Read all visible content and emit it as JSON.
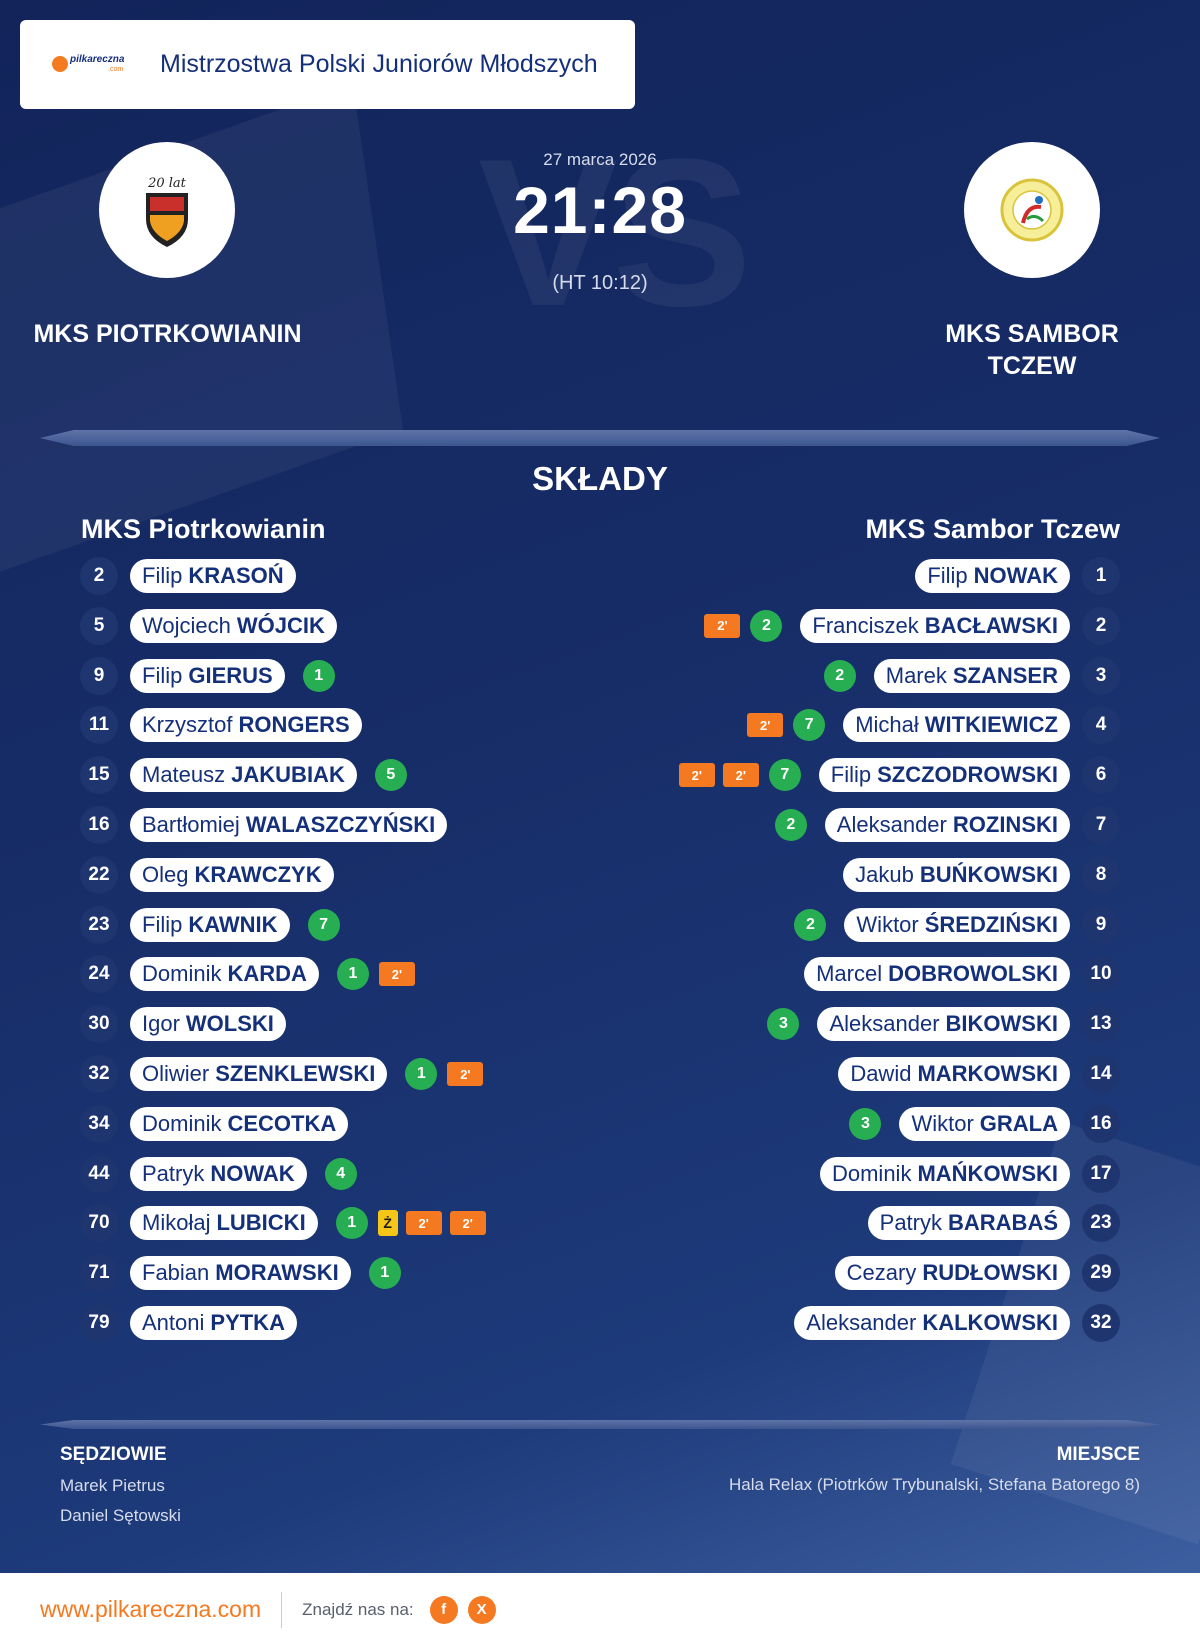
{
  "header": {
    "league": "Mistrzostwa Polski Juniorów Młodszych",
    "brand_logo_text": "pilkareczna",
    "brand_logo_sub": ".com"
  },
  "match": {
    "date": "27 marca 2026",
    "score": "21:28",
    "half_time": "(HT 10:12)",
    "home_team": "MKS PIOTRKOWIANIN",
    "away_team": "MKS SAMBOR TCZEW",
    "home_logo_text": "20 lat",
    "vs_watermark": "VS"
  },
  "lineups": {
    "title": "SKŁADY",
    "home_name": "MKS Piotrkowianin",
    "away_name": "MKS Sambor Tczew",
    "home": [
      {
        "num": "2",
        "first": "Filip",
        "last": "KRASOŃ",
        "events": []
      },
      {
        "num": "5",
        "first": "Wojciech",
        "last": "WÓJCIK",
        "events": []
      },
      {
        "num": "9",
        "first": "Filip",
        "last": "GIERUS",
        "events": [
          {
            "type": "goal",
            "text": "1"
          }
        ]
      },
      {
        "num": "11",
        "first": "Krzysztof",
        "last": "RONGERS",
        "events": []
      },
      {
        "num": "15",
        "first": "Mateusz",
        "last": "JAKUBIAK",
        "events": [
          {
            "type": "goal",
            "text": "5"
          }
        ]
      },
      {
        "num": "16",
        "first": "Bartłomiej",
        "last": "WALASZCZYŃSKI",
        "events": []
      },
      {
        "num": "22",
        "first": "Oleg",
        "last": "KRAWCZYK",
        "events": []
      },
      {
        "num": "23",
        "first": "Filip",
        "last": "KAWNIK",
        "events": [
          {
            "type": "goal",
            "text": "7"
          }
        ]
      },
      {
        "num": "24",
        "first": "Dominik",
        "last": "KARDA",
        "events": [
          {
            "type": "goal",
            "text": "1"
          },
          {
            "type": "susp",
            "text": "2'"
          }
        ]
      },
      {
        "num": "30",
        "first": "Igor",
        "last": "WOLSKI",
        "events": []
      },
      {
        "num": "32",
        "first": "Oliwier",
        "last": "SZENKLEWSKI",
        "events": [
          {
            "type": "goal",
            "text": "1"
          },
          {
            "type": "susp",
            "text": "2'"
          }
        ]
      },
      {
        "num": "34",
        "first": "Dominik",
        "last": "CECOTKA",
        "events": []
      },
      {
        "num": "44",
        "first": "Patryk",
        "last": "NOWAK",
        "events": [
          {
            "type": "goal",
            "text": "4"
          }
        ]
      },
      {
        "num": "70",
        "first": "Mikołaj",
        "last": "LUBICKI",
        "events": [
          {
            "type": "goal",
            "text": "1"
          },
          {
            "type": "yellow",
            "text": "Ż"
          },
          {
            "type": "susp",
            "text": "2'"
          },
          {
            "type": "susp",
            "text": "2'"
          }
        ]
      },
      {
        "num": "71",
        "first": "Fabian",
        "last": "MORAWSKI",
        "events": [
          {
            "type": "goal",
            "text": "1"
          }
        ]
      },
      {
        "num": "79",
        "first": "Antoni",
        "last": "PYTKA",
        "events": []
      }
    ],
    "away": [
      {
        "num": "1",
        "first": "Filip",
        "last": "NOWAK",
        "events": []
      },
      {
        "num": "2",
        "first": "Franciszek",
        "last": "BACŁAWSKI",
        "events": [
          {
            "type": "susp",
            "text": "2'"
          },
          {
            "type": "goal",
            "text": "2"
          }
        ]
      },
      {
        "num": "3",
        "first": "Marek",
        "last": "SZANSER",
        "events": [
          {
            "type": "goal",
            "text": "2"
          }
        ]
      },
      {
        "num": "4",
        "first": "Michał",
        "last": "WITKIEWICZ",
        "events": [
          {
            "type": "susp",
            "text": "2'"
          },
          {
            "type": "goal",
            "text": "7"
          }
        ]
      },
      {
        "num": "6",
        "first": "Filip",
        "last": "SZCZODROWSKI",
        "events": [
          {
            "type": "susp",
            "text": "2'"
          },
          {
            "type": "susp",
            "text": "2'"
          },
          {
            "type": "goal",
            "text": "7"
          }
        ]
      },
      {
        "num": "7",
        "first": "Aleksander",
        "last": "ROZINSKI",
        "events": [
          {
            "type": "goal",
            "text": "2"
          }
        ]
      },
      {
        "num": "8",
        "first": "Jakub",
        "last": "BUŃKOWSKI",
        "events": []
      },
      {
        "num": "9",
        "first": "Wiktor",
        "last": "ŚREDZIŃSKI",
        "events": [
          {
            "type": "goal",
            "text": "2"
          }
        ]
      },
      {
        "num": "10",
        "first": "Marcel",
        "last": "DOBROWOLSKI",
        "events": []
      },
      {
        "num": "13",
        "first": "Aleksander",
        "last": "BIKOWSKI",
        "events": [
          {
            "type": "goal",
            "text": "3"
          }
        ]
      },
      {
        "num": "14",
        "first": "Dawid",
        "last": "MARKOWSKI",
        "events": []
      },
      {
        "num": "16",
        "first": "Wiktor",
        "last": "GRALA",
        "events": [
          {
            "type": "goal",
            "text": "3"
          }
        ]
      },
      {
        "num": "17",
        "first": "Dominik",
        "last": "MAŃKOWSKI",
        "events": []
      },
      {
        "num": "23",
        "first": "Patryk",
        "last": "BARABAŚ",
        "events": []
      },
      {
        "num": "29",
        "first": "Cezary",
        "last": "RUDŁOWSKI",
        "events": []
      },
      {
        "num": "32",
        "first": "Aleksander",
        "last": "KALKOWSKI",
        "events": []
      }
    ]
  },
  "officials": {
    "title": "SĘDZIOWIE",
    "names": [
      "Marek Pietrus",
      "Daniel Sętowski"
    ]
  },
  "venue": {
    "title": "MIEJSCE",
    "text": "Hala Relax (Piotrków Trybunalski, Stefana Batorego 8)"
  },
  "footer": {
    "url": "www.pilkareczna.com",
    "find_us": "Znajdź nas na:",
    "social": [
      {
        "icon": "facebook-icon",
        "glyph": "f"
      },
      {
        "icon": "x-icon",
        "glyph": "X"
      }
    ]
  },
  "colors": {
    "background": "#172d68",
    "accent": "#f47920",
    "goal": "#27ae52",
    "suspension": "#f47920",
    "yellow_card": "#f5c518",
    "text_dark": "#15307a"
  }
}
